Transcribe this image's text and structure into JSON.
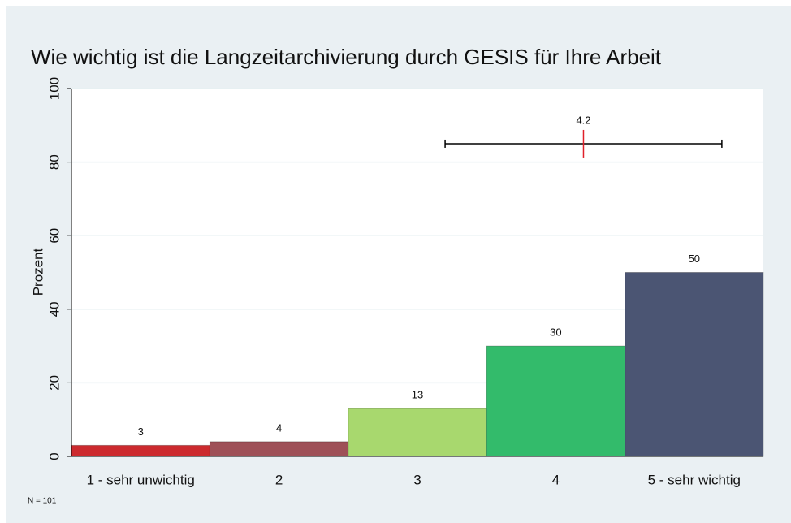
{
  "chart_data": {
    "type": "bar",
    "title": "Wie wichtig ist die Langzeitarchivierung durch GESIS für Ihre Arbeit",
    "ylabel": "Prozent",
    "categories": [
      "1 - sehr unwichtig",
      "2",
      "3",
      "4",
      "5 - sehr wichtig"
    ],
    "values": [
      3,
      4,
      13,
      30,
      50
    ],
    "colors": [
      "#cc2a2e",
      "#9e5057",
      "#a8d86e",
      "#33bb6b",
      "#4b5573"
    ],
    "ylim": [
      0,
      100
    ],
    "yticks": [
      0,
      20,
      40,
      60,
      80,
      100
    ],
    "grid": true,
    "mean": 4.2,
    "sd": 1.0,
    "note": "N = 101"
  }
}
